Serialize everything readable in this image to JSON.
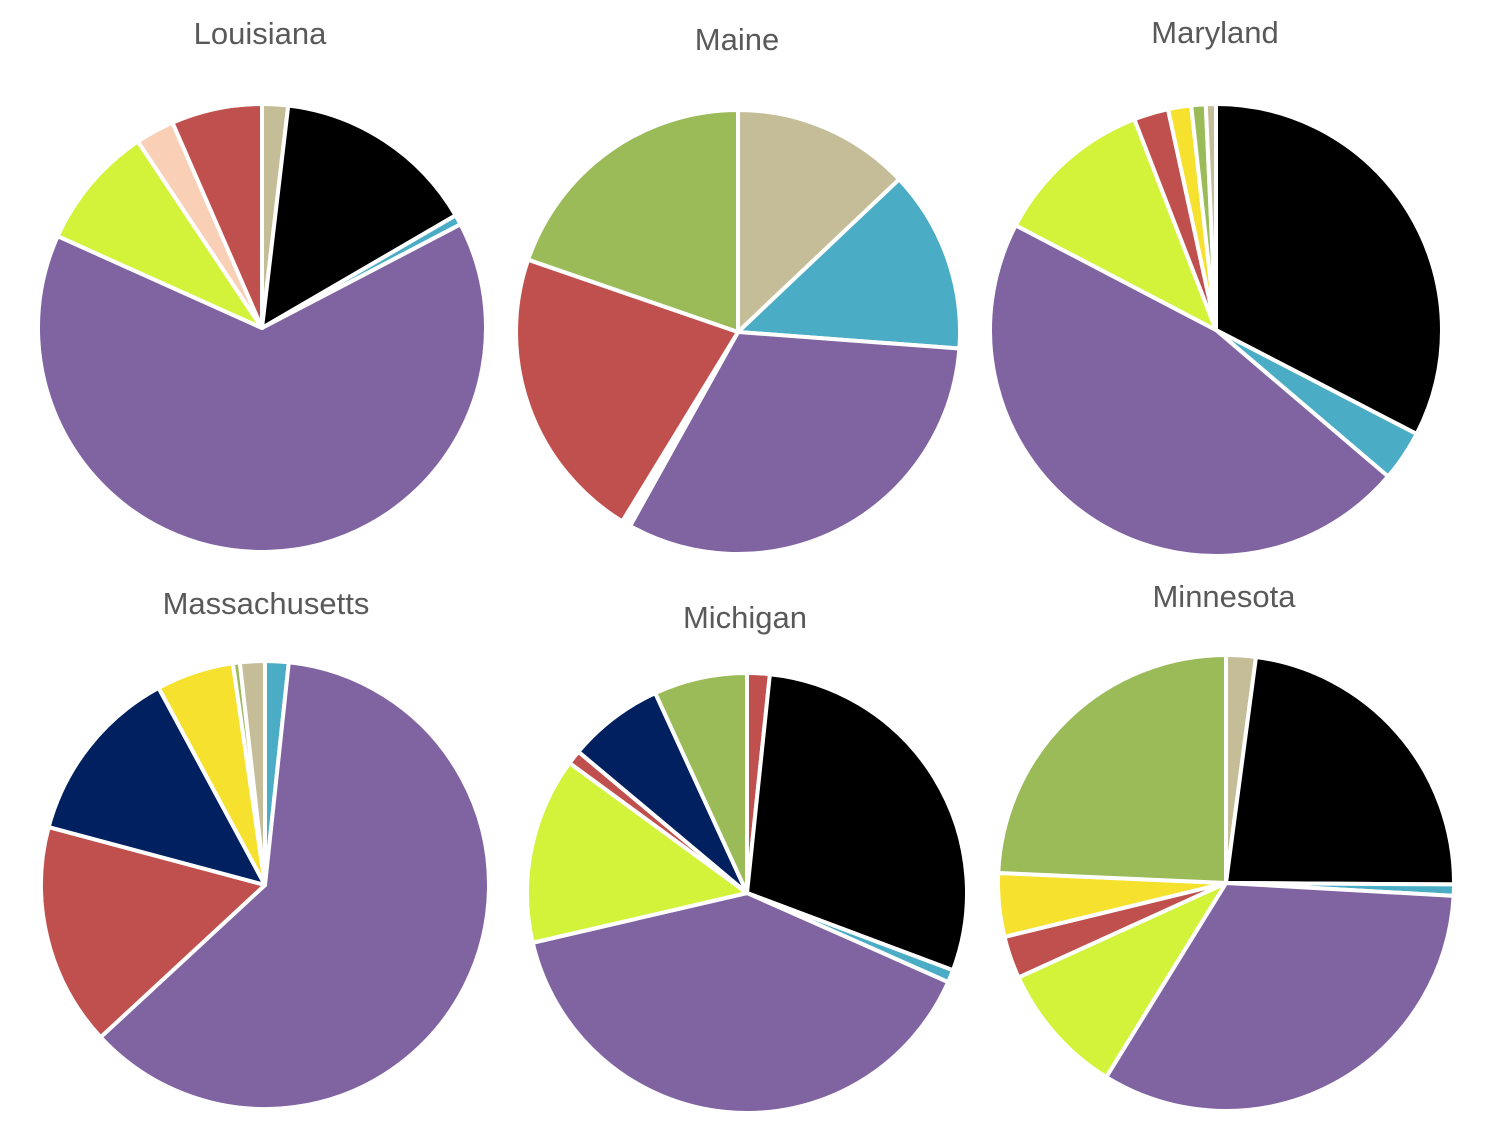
{
  "chart_data": [
    {
      "type": "pie",
      "title": "Louisiana",
      "slices": [
        {
          "value": 1.8,
          "color": "#c4bd97"
        },
        {
          "value": 14.2,
          "color": "#000000"
        },
        {
          "value": 0.7,
          "color": "#4bacc6"
        },
        {
          "value": 62.0,
          "color": "#8064a2"
        },
        {
          "value": 8.6,
          "color": "#d3f23a"
        },
        {
          "value": 2.7,
          "color": "#f9cfb6"
        },
        {
          "value": 6.3,
          "color": "#c0504d"
        }
      ]
    },
    {
      "type": "pie",
      "title": "Maine",
      "slices": [
        {
          "value": 12.0,
          "color": "#c4bd97"
        },
        {
          "value": 12.3,
          "color": "#4bacc6"
        },
        {
          "value": 29.6,
          "color": "#8064a2"
        },
        {
          "value": 0.6,
          "color": "#ffffff"
        },
        {
          "value": 20.0,
          "color": "#c0504d"
        },
        {
          "value": 18.3,
          "color": "#9bbb59"
        }
      ]
    },
    {
      "type": "pie",
      "title": "Maryland",
      "slices": [
        {
          "value": 31.6,
          "color": "#000000"
        },
        {
          "value": 3.5,
          "color": "#4bacc6"
        },
        {
          "value": 45.0,
          "color": "#8064a2"
        },
        {
          "value": 11.1,
          "color": "#d3f23a"
        },
        {
          "value": 2.4,
          "color": "#c0504d"
        },
        {
          "value": 1.6,
          "color": "#f6e22e"
        },
        {
          "value": 1.0,
          "color": "#9bbb59"
        },
        {
          "value": 0.7,
          "color": "#c4bd97"
        }
      ]
    },
    {
      "type": "pie",
      "title": "Massachusetts",
      "slices": [
        {
          "value": 1.7,
          "color": "#4bacc6"
        },
        {
          "value": 61.6,
          "color": "#8064a2"
        },
        {
          "value": 16.1,
          "color": "#c0504d"
        },
        {
          "value": 13.0,
          "color": "#002060"
        },
        {
          "value": 5.6,
          "color": "#f6e22e"
        },
        {
          "value": 0.5,
          "color": "#9bbb59"
        },
        {
          "value": 1.8,
          "color": "#c4bd97"
        }
      ]
    },
    {
      "type": "pie",
      "title": "Michigan",
      "slices": [
        {
          "value": 1.6,
          "color": "#c0504d"
        },
        {
          "value": 28.0,
          "color": "#000000"
        },
        {
          "value": 0.9,
          "color": "#4bacc6"
        },
        {
          "value": 38.3,
          "color": "#8064a2"
        },
        {
          "value": 13.2,
          "color": "#d3f23a"
        },
        {
          "value": 1.0,
          "color": "#c0504d"
        },
        {
          "value": 6.8,
          "color": "#002060"
        },
        {
          "value": 6.6,
          "color": "#9bbb59"
        }
      ]
    },
    {
      "type": "pie",
      "title": "Minnesota",
      "slices": [
        {
          "value": 2.1,
          "color": "#c4bd97"
        },
        {
          "value": 23.0,
          "color": "#000000"
        },
        {
          "value": 0.8,
          "color": "#4bacc6"
        },
        {
          "value": 32.9,
          "color": "#8064a2"
        },
        {
          "value": 9.4,
          "color": "#d3f23a"
        },
        {
          "value": 3.0,
          "color": "#c0504d"
        },
        {
          "value": 4.5,
          "color": "#f6e22e"
        },
        {
          "value": 24.3,
          "color": "#9bbb59"
        }
      ]
    }
  ]
}
